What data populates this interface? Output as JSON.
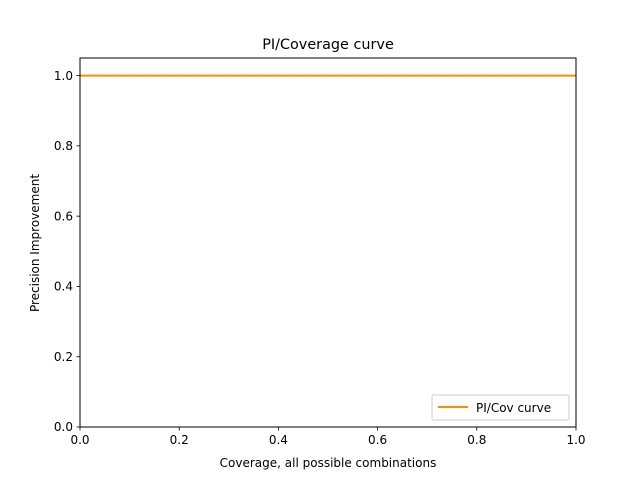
{
  "chart_data": {
    "type": "line",
    "title": "PI/Coverage curve",
    "xlabel": "Coverage, all possible combinations",
    "ylabel": "Precision Improvement",
    "xlim": [
      0.0,
      1.0
    ],
    "ylim": [
      0.0,
      1.05
    ],
    "xticks": [
      0.0,
      0.2,
      0.4,
      0.6,
      0.8,
      1.0
    ],
    "xtick_labels": [
      "0.0",
      "0.2",
      "0.4",
      "0.6",
      "0.8",
      "1.0"
    ],
    "yticks": [
      0.0,
      0.2,
      0.4,
      0.6,
      0.8,
      1.0
    ],
    "ytick_labels": [
      "0.0",
      "0.2",
      "0.4",
      "0.6",
      "0.8",
      "1.0"
    ],
    "grid": false,
    "legend_position": "lower right",
    "series": [
      {
        "name": "PI/Cov curve",
        "color": "#ff8c00",
        "x": [
          0.0,
          1.0
        ],
        "y": [
          1.0,
          1.0
        ]
      }
    ]
  }
}
